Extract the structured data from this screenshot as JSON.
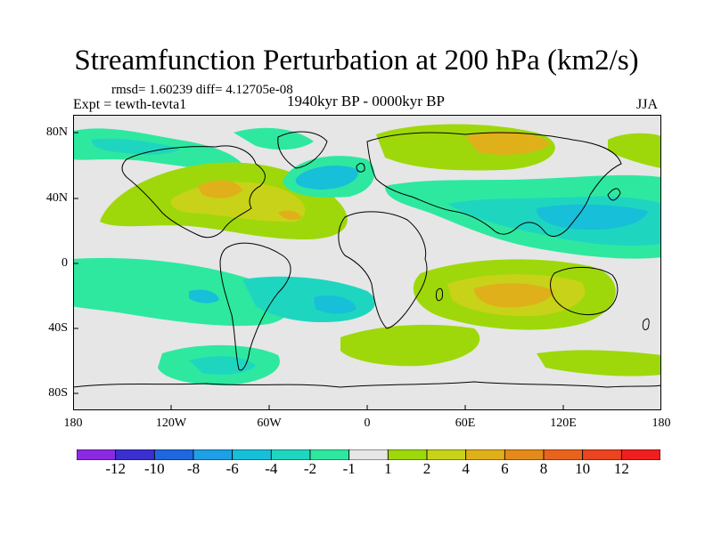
{
  "header": {
    "title": "Streamfunction Perturbation at 200 hPa (km2/s)",
    "stats": "rmsd= 1.60239 diff= 4.12705e-08",
    "experiment": "Expt = tewth-tevta1",
    "period": "1940kyr BP - 0000kyr BP",
    "season": "JJA"
  },
  "axes": {
    "lat_labels": [
      "80N",
      "40N",
      "0",
      "40S",
      "80S"
    ],
    "lon_labels": [
      "180",
      "120W",
      "60W",
      "0",
      "60E",
      "120E",
      "180"
    ]
  },
  "colorbar": {
    "labels": [
      "-12",
      "-10",
      "-8",
      "-6",
      "-4",
      "-2",
      "-1",
      "1",
      "2",
      "4",
      "6",
      "8",
      "10",
      "12"
    ],
    "colors": [
      "#8a2be2",
      "#3a30d0",
      "#1f67e0",
      "#1e9fe6",
      "#17bfd8",
      "#1ed6c0",
      "#2ee8a0",
      "#e6e6e6",
      "#9ed80a",
      "#c8d218",
      "#e0b01a",
      "#e48a1a",
      "#e8641c",
      "#ec4420",
      "#f01e1e"
    ]
  },
  "colors": {
    "background": "#e6e6e6",
    "neg1": "#2ee8a0",
    "neg2": "#1ed6c0",
    "neg3": "#17bfd8",
    "pos1": "#9ed80a",
    "pos2": "#c8d218",
    "pos3": "#e0b01a"
  }
}
